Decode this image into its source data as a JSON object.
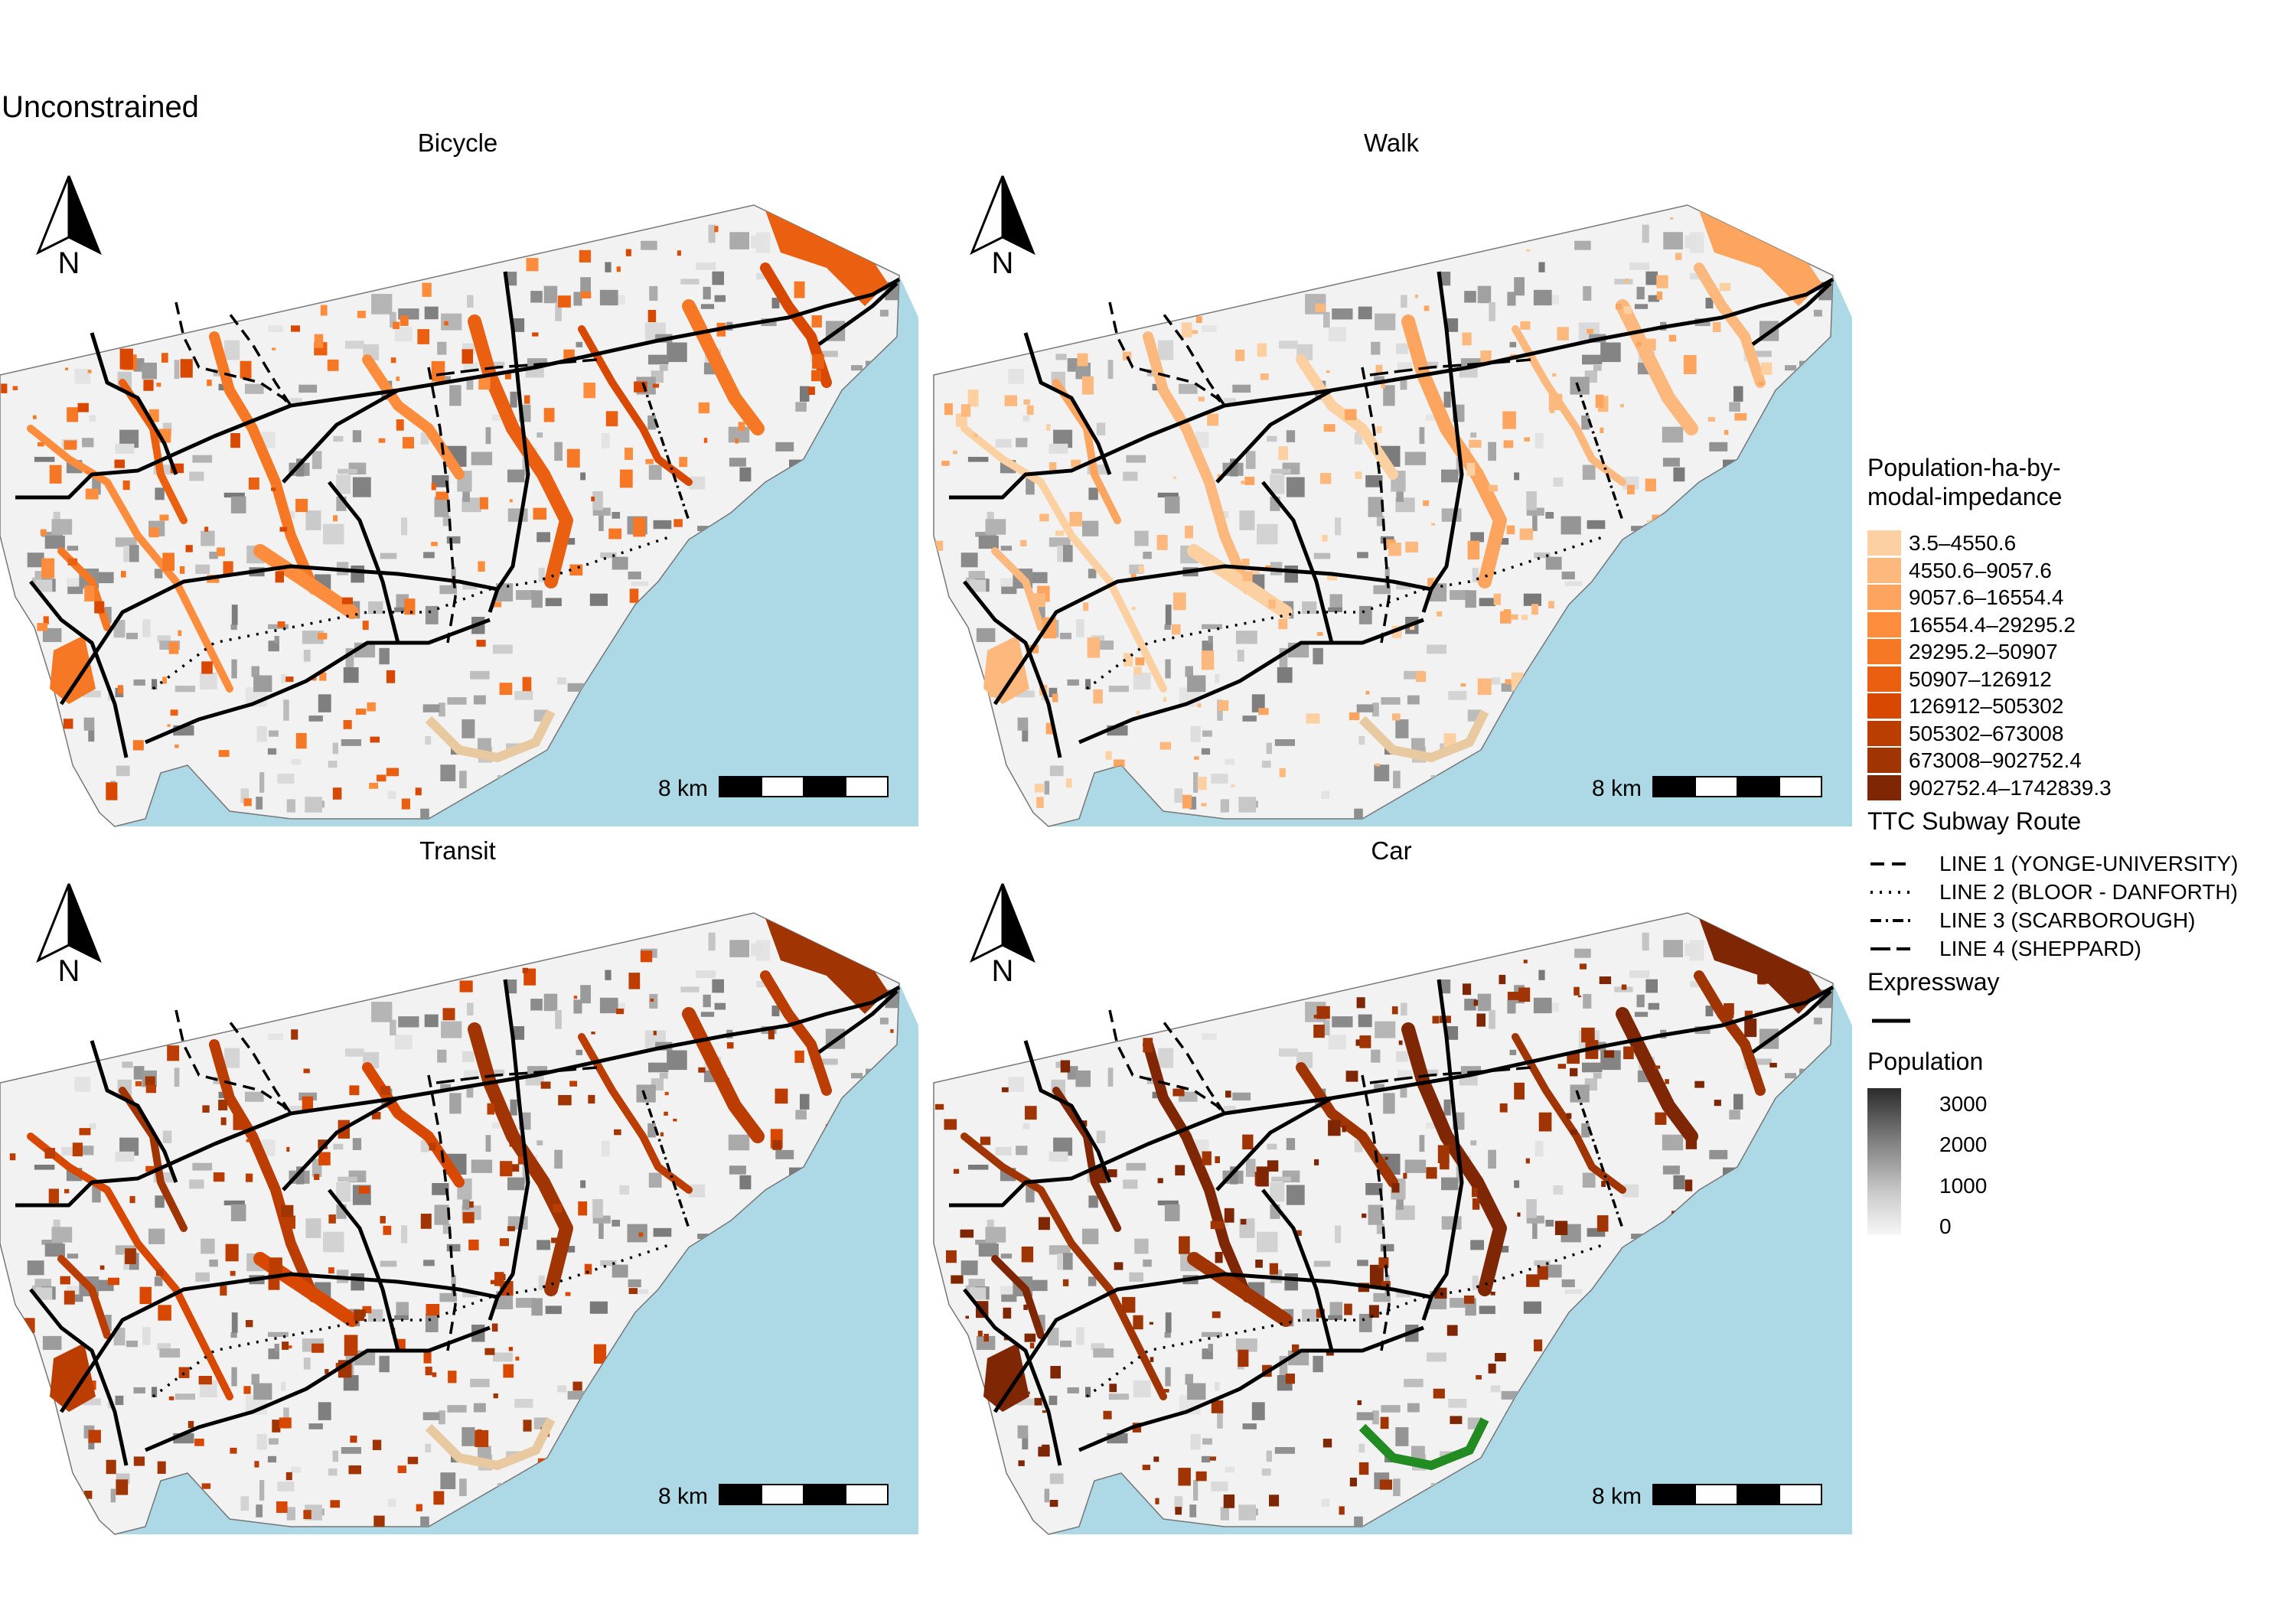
{
  "title": "Unconstrained",
  "panels": [
    {
      "name": "Bicycle",
      "scheme": "mid"
    },
    {
      "name": "Walk",
      "scheme": "light"
    },
    {
      "name": "Transit",
      "scheme": "dark"
    },
    {
      "name": "Car",
      "scheme": "darkest"
    }
  ],
  "north_label": "N",
  "scalebar_label": "8 km",
  "legend": {
    "fill_title_line1": "Population-ha-by-",
    "fill_title_line2": "modal-impedance",
    "fill_classes": [
      {
        "label": "3.5–4550.6",
        "color": "#fdd0a2"
      },
      {
        "label": "4550.6–9057.6",
        "color": "#fdb97d"
      },
      {
        "label": "9057.6–16554.4",
        "color": "#fda45e"
      },
      {
        "label": "16554.4–29295.2",
        "color": "#fd8d3c"
      },
      {
        "label": "29295.2–50907",
        "color": "#f67824"
      },
      {
        "label": "50907–126912",
        "color": "#ea6010"
      },
      {
        "label": "126912–505302",
        "color": "#d94801"
      },
      {
        "label": "505302–673008",
        "color": "#bb3d02"
      },
      {
        "label": "673008–902752.4",
        "color": "#a03503"
      },
      {
        "label": "902752.4–1742839.3",
        "color": "#7f2704"
      }
    ],
    "subway_title": "TTC Subway Route",
    "subway_lines": [
      {
        "label": "LINE 1 (YONGE-UNIVERSITY)",
        "dash": "18 10"
      },
      {
        "label": "LINE 2 (BLOOR - DANFORTH)",
        "dash": "3 9"
      },
      {
        "label": "LINE 3 (SCARBOROUGH)",
        "dash": "14 6 3 6"
      },
      {
        "label": "LINE 4 (SHEPPARD)",
        "dash": "26 8"
      }
    ],
    "expressway_title": "Expressway",
    "population_title": "Population",
    "population_ticks": [
      {
        "label": "3000",
        "value": 3000
      },
      {
        "label": "2000",
        "value": 2000
      },
      {
        "label": "1000",
        "value": 1000
      },
      {
        "label": "0",
        "value": 0
      }
    ]
  },
  "colors": {
    "water": "#add8e6",
    "land": "#f2f2f2",
    "park": "#228b22"
  }
}
